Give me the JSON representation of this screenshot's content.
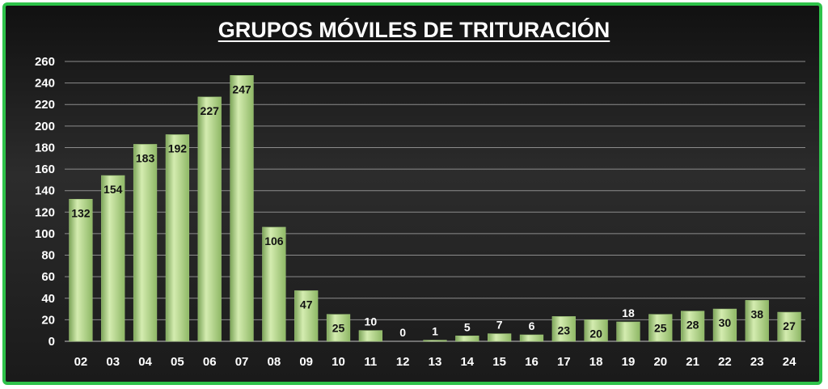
{
  "chart_data": {
    "type": "bar",
    "title": "GRUPOS MÓVILES DE TRITURACIÓN",
    "xlabel": "",
    "ylabel": "",
    "categories": [
      "02",
      "03",
      "04",
      "05",
      "06",
      "07",
      "08",
      "09",
      "10",
      "11",
      "12",
      "13",
      "14",
      "15",
      "16",
      "17",
      "18",
      "19",
      "20",
      "21",
      "22",
      "23",
      "24"
    ],
    "values": [
      132,
      154,
      183,
      192,
      227,
      247,
      106,
      47,
      25,
      10,
      0,
      1,
      5,
      7,
      6,
      23,
      20,
      18,
      25,
      28,
      30,
      38,
      27
    ],
    "ylim": [
      0,
      260
    ],
    "yticks": [
      0,
      20,
      40,
      60,
      80,
      100,
      120,
      140,
      160,
      180,
      200,
      220,
      240,
      260
    ],
    "grid": true,
    "colors": {
      "bar": "#b6d88e",
      "grid": "#8c8c8c",
      "frame": "#2ec24a",
      "label_highlight": "#e8541c"
    }
  }
}
